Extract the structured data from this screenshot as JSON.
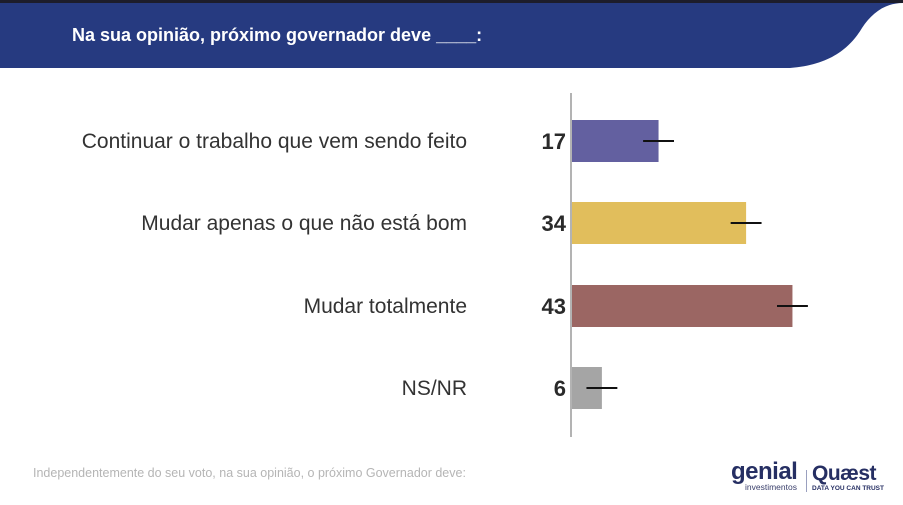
{
  "header": {
    "title": "Na sua opinião, próximo governador deve ____:"
  },
  "chart_data": {
    "type": "bar",
    "orientation": "horizontal",
    "title": "Na sua opinião, próximo governador deve ____:",
    "categories": [
      "Continuar o trabalho que vem sendo feito",
      "Mudar apenas o que não está bom",
      "Mudar totalmente",
      "NS/NR"
    ],
    "values": [
      17,
      34,
      43,
      6
    ],
    "labels": [
      "17",
      "34",
      "43",
      "6"
    ],
    "error_margin": 3,
    "colors": [
      "#6360a0",
      "#e1be5c",
      "#9b6663",
      "#a5a5a5"
    ],
    "xlim": [
      0,
      50
    ],
    "grid": false,
    "legend": "none"
  },
  "footnote": "Independentemente do seu voto, na sua opinião, o próximo Governador deve:",
  "logos": {
    "genial": "genial",
    "genial_sub": "investimentos",
    "quaest": "Quæst",
    "quaest_sub": "DATA YOU CAN TRUST"
  }
}
